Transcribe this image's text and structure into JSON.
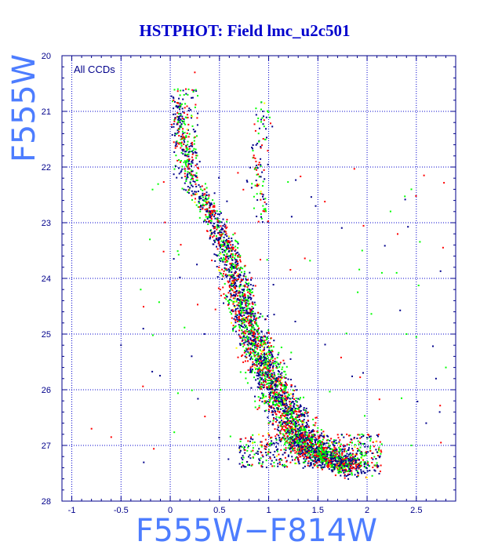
{
  "chart_data": {
    "type": "scatter",
    "title": "HSTPHOT: Field lmc_u2c501",
    "xlabel": "F555W−F814W",
    "ylabel": "F555W",
    "annotation": "All CCDs",
    "xlim": [
      -1.1,
      2.9
    ],
    "ylim": [
      28,
      20
    ],
    "y_inverted": true,
    "x_ticks": [
      -1,
      -0.5,
      0,
      0.5,
      1,
      1.5,
      2,
      2.5
    ],
    "x_tick_labels": [
      "-1",
      "-0.5",
      "0",
      "0.5",
      "1",
      "1.5",
      "2",
      "2.5"
    ],
    "y_ticks": [
      20,
      21,
      22,
      23,
      24,
      25,
      26,
      27,
      28
    ],
    "y_tick_labels": [
      "20",
      "21",
      "22",
      "23",
      "24",
      "25",
      "26",
      "27",
      "28"
    ],
    "grid": true,
    "grid_x": [
      -1,
      -0.5,
      0,
      0.5,
      1,
      1.5,
      2,
      2.5
    ],
    "grid_y": [
      21,
      22,
      23,
      24,
      25,
      26,
      27
    ],
    "legend": "none",
    "series": [
      {
        "color": "#00008b"
      },
      {
        "color": "#ff0000"
      },
      {
        "color": "#00ff00"
      },
      {
        "color": "#ffff00"
      }
    ],
    "main_sequence_ridge": [
      [
        0.05,
        20.7
      ],
      [
        0.12,
        21.5
      ],
      [
        0.25,
        22.3
      ],
      [
        0.45,
        23.0
      ],
      [
        0.62,
        23.7
      ],
      [
        0.72,
        24.4
      ],
      [
        0.82,
        25.0
      ],
      [
        0.97,
        25.6
      ],
      [
        1.12,
        26.2
      ],
      [
        1.3,
        26.8
      ],
      [
        1.55,
        27.2
      ],
      [
        1.9,
        27.4
      ]
    ],
    "giant_branch": [
      [
        0.98,
        20.8
      ],
      [
        0.93,
        21.3
      ],
      [
        0.9,
        21.8
      ],
      [
        0.88,
        22.2
      ],
      [
        0.9,
        22.6
      ],
      [
        0.95,
        23.0
      ]
    ],
    "scattered_points": [
      [
        -0.3,
        24.2
      ],
      [
        2.4,
        25.0
      ],
      [
        2.5,
        25.05
      ],
      [
        2.8,
        25.6
      ],
      [
        2.7,
        25.8
      ],
      [
        2.6,
        26.6
      ],
      [
        2.75,
        26.95
      ],
      [
        2.45,
        27.0
      ],
      [
        -0.8,
        26.7
      ],
      [
        -0.6,
        26.85
      ],
      [
        -0.5,
        25.2
      ],
      [
        2.45,
        22.4
      ],
      [
        2.3,
        23.9
      ],
      [
        2.15,
        23.9
      ],
      [
        1.95,
        23.5
      ],
      [
        0.25,
        20.3
      ]
    ]
  }
}
